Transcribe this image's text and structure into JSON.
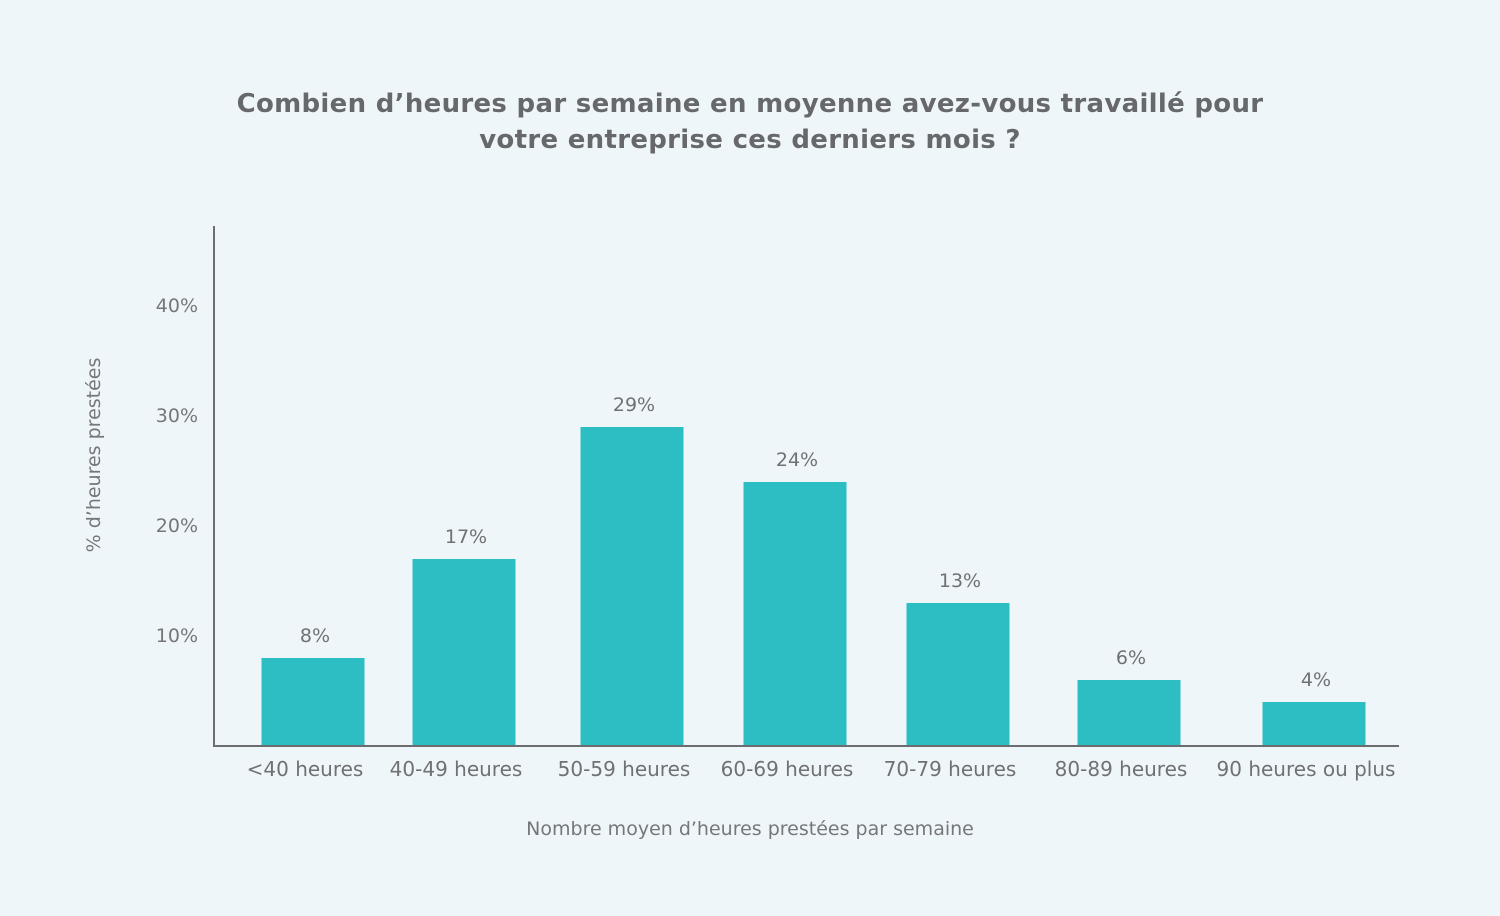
{
  "chart_data": {
    "type": "bar",
    "title_lines": [
      "Combien d’heures par semaine en moyenne avez-vous travaillé pour",
      "votre entreprise ces derniers mois ?"
    ],
    "xlabel": "Nombre moyen d’heures prestées par semaine",
    "ylabel": "% d’heures prestées",
    "categories": [
      "<40 heures",
      "40-49 heures",
      "50-59 heures",
      "60-69 heures",
      "70-79 heures",
      "80-89 heures",
      "90 heures ou plus"
    ],
    "values": [
      8,
      17,
      29,
      24,
      13,
      6,
      4
    ],
    "data_labels": [
      "8%",
      "17%",
      "29%",
      "24%",
      "13%",
      "6%",
      "4%"
    ],
    "yticks": [
      10,
      20,
      30,
      40
    ],
    "ytick_labels": [
      "10%",
      "20%",
      "30%",
      "40%"
    ],
    "ylim": [
      0,
      48
    ],
    "grid": false,
    "legend": "none",
    "bar_color": "#2dbec4",
    "axis_color": "#6b6d70"
  }
}
